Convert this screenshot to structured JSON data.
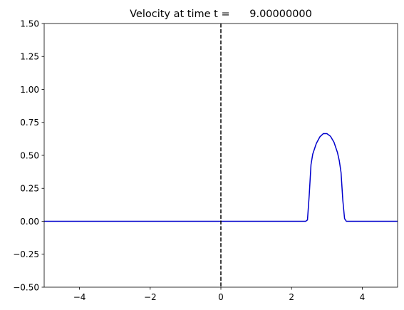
{
  "chart_data": {
    "type": "line",
    "title": "Velocity at time t =      9.00000000",
    "xlabel": "",
    "ylabel": "",
    "xlim": [
      -5,
      5
    ],
    "ylim": [
      -0.5,
      1.5
    ],
    "x_ticks": [
      -4,
      -2,
      0,
      2,
      4
    ],
    "x_tick_labels": [
      "−4",
      "−2",
      "0",
      "2",
      "4"
    ],
    "y_ticks": [
      -0.5,
      -0.25,
      0.0,
      0.25,
      0.5,
      0.75,
      1.0,
      1.25,
      1.5
    ],
    "y_tick_labels": [
      "−0.50",
      "−0.25",
      "0.00",
      "0.25",
      "0.50",
      "0.75",
      "1.00",
      "1.25",
      "1.50"
    ],
    "grid": false,
    "legend": "none",
    "series": [
      {
        "color": "#0000cc",
        "x": [
          -5.0,
          2.4,
          2.45,
          2.5,
          2.55,
          2.6,
          2.65,
          2.7,
          2.8,
          2.9,
          3.0,
          3.1,
          3.2,
          3.3,
          3.35,
          3.4,
          3.45,
          3.5,
          3.55,
          3.6,
          5.0
        ],
        "y": [
          0.0,
          0.0,
          0.01,
          0.2,
          0.43,
          0.51,
          0.55,
          0.59,
          0.64,
          0.665,
          0.665,
          0.645,
          0.6,
          0.52,
          0.46,
          0.37,
          0.16,
          0.02,
          0.0,
          0.0,
          0.0
        ]
      }
    ],
    "vlines": [
      {
        "x": 0,
        "color": "#000000",
        "style": "dashed"
      }
    ]
  }
}
